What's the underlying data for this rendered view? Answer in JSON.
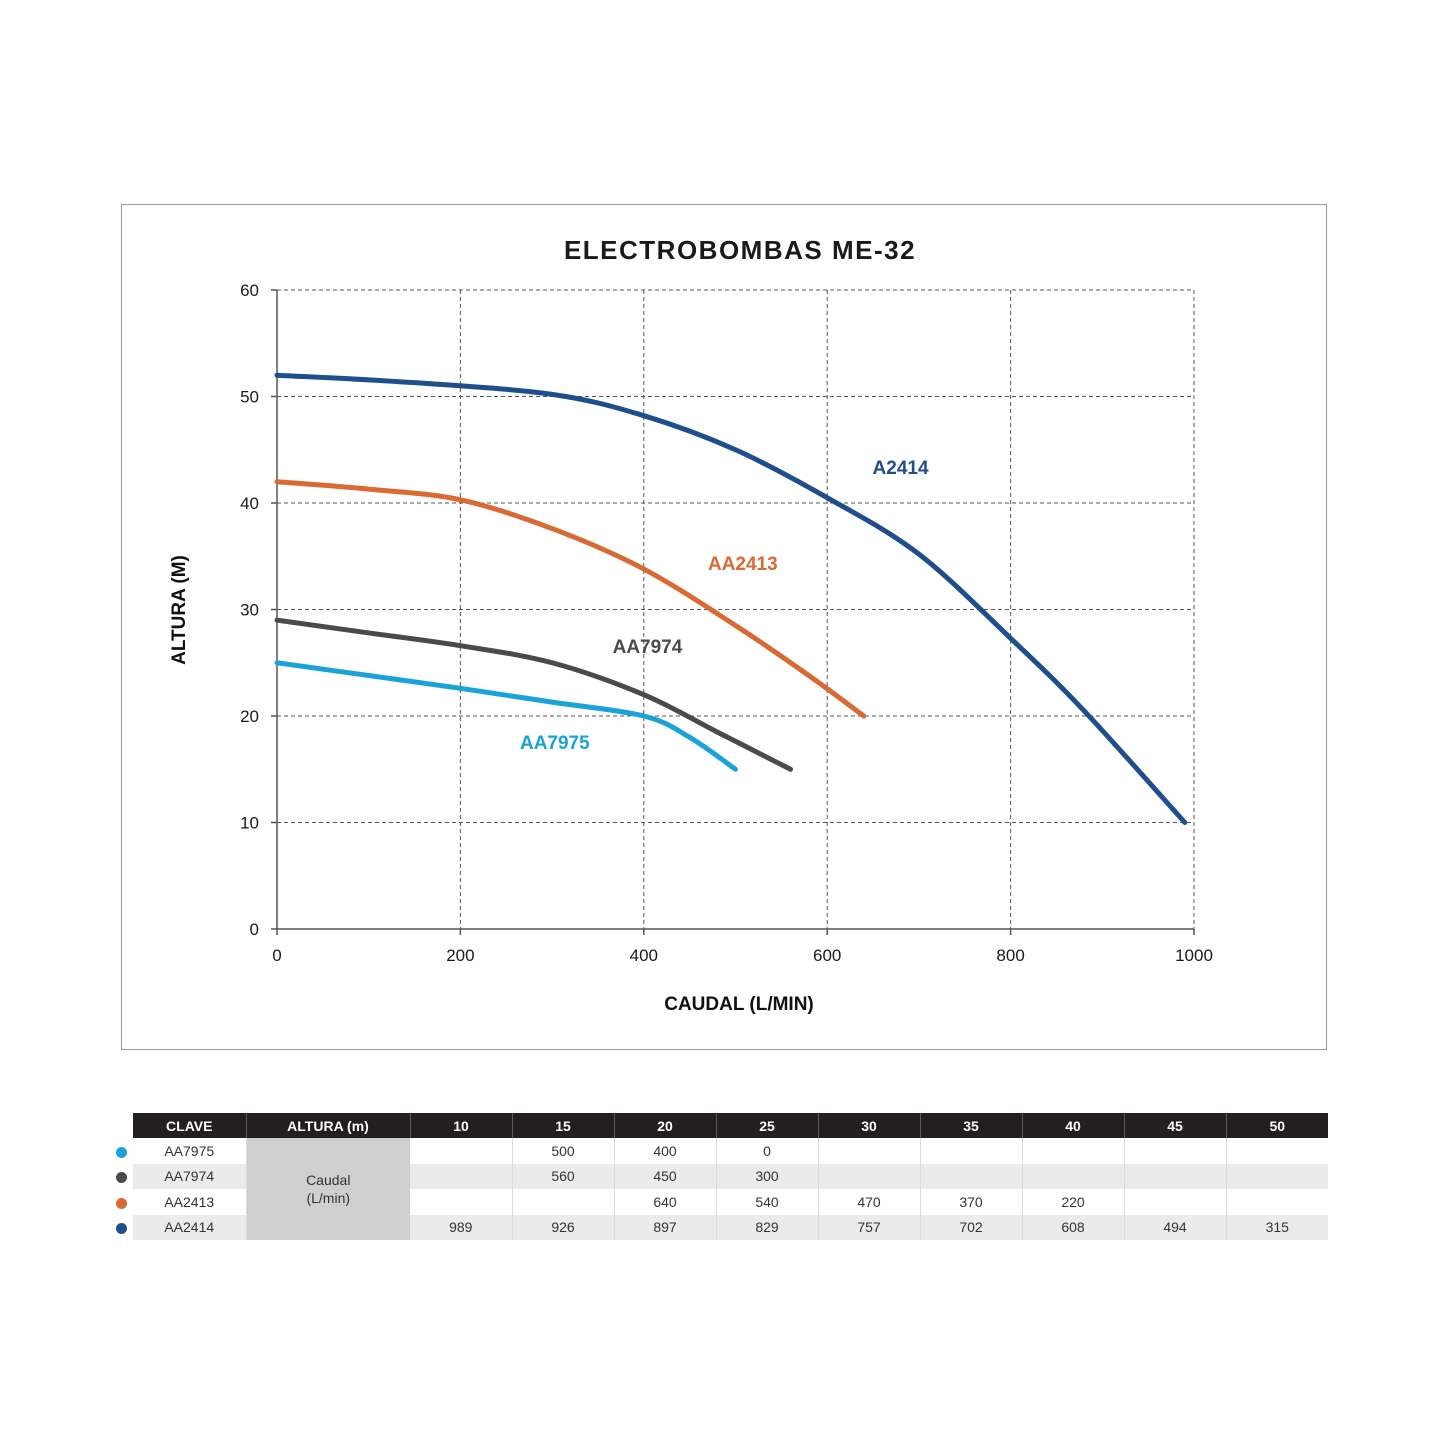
{
  "chart_data": {
    "type": "line",
    "title": "ELECTROBOMBAS ME-32",
    "xlabel": "CAUDAL (L/MIN)",
    "ylabel": "ALTURA (M)",
    "xlim": [
      0,
      1000
    ],
    "ylim": [
      0,
      60
    ],
    "xticks": [
      0,
      200,
      400,
      600,
      800,
      1000
    ],
    "yticks": [
      0,
      10,
      20,
      30,
      40,
      50,
      60
    ],
    "grid": true,
    "series": [
      {
        "name": "A2414",
        "color": "#1f4e8c",
        "x": [
          0,
          150,
          300,
          400,
          500,
          600,
          700,
          800,
          880,
          990
        ],
        "y": [
          52,
          51.3,
          50.2,
          48.2,
          45,
          40.5,
          35.2,
          27.3,
          20.5,
          10
        ]
      },
      {
        "name": "AA2413",
        "color": "#d96a34",
        "x": [
          0,
          100,
          200,
          300,
          400,
          500,
          580,
          640
        ],
        "y": [
          42,
          41.3,
          40.3,
          37.6,
          33.8,
          28.5,
          23.8,
          20
        ]
      },
      {
        "name": "AA7974",
        "color": "#474c4b",
        "x": [
          0,
          100,
          200,
          300,
          400,
          480,
          560
        ],
        "y": [
          29,
          27.8,
          26.6,
          25,
          22,
          18.5,
          15
        ]
      },
      {
        "name": "AA7975",
        "color": "#1aa3d8",
        "x": [
          0,
          100,
          200,
          300,
          400,
          450,
          500
        ],
        "y": [
          25,
          23.8,
          22.6,
          21.3,
          20,
          18,
          15
        ]
      }
    ]
  },
  "table": {
    "headers": [
      "CLAVE",
      "ALTURA (m)",
      "10",
      "15",
      "20",
      "25",
      "30",
      "35",
      "40",
      "45",
      "50"
    ],
    "merged_line1": "Caudal",
    "merged_line2": "(L/min)",
    "rows": [
      {
        "clave": "AA7975",
        "color": "#1aa3d8",
        "cells": [
          "",
          "500",
          "400",
          "0",
          "",
          "",
          "",
          "",
          ""
        ]
      },
      {
        "clave": "AA7974",
        "color": "#474c4b",
        "cells": [
          "",
          "560",
          "450",
          "300",
          "",
          "",
          "",
          "",
          ""
        ]
      },
      {
        "clave": "AA2413",
        "color": "#d96a34",
        "cells": [
          "",
          "",
          "640",
          "540",
          "470",
          "370",
          "220",
          "",
          ""
        ]
      },
      {
        "clave": "AA2414",
        "color": "#1f4e8c",
        "cells": [
          "989",
          "926",
          "897",
          "829",
          "757",
          "702",
          "608",
          "494",
          "315"
        ]
      }
    ]
  }
}
